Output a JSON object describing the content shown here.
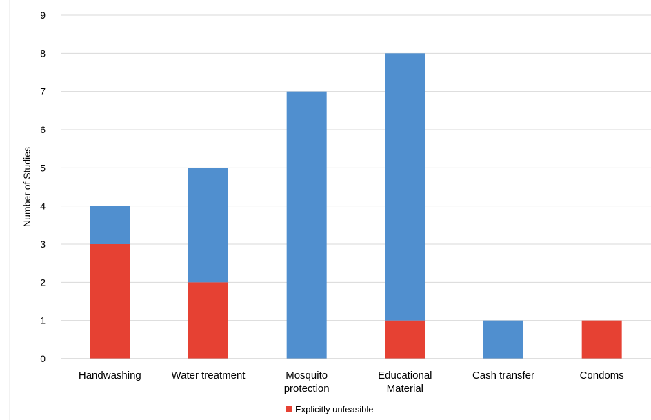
{
  "chart_data": {
    "type": "bar",
    "stacked": true,
    "categories": [
      [
        "Handwashing"
      ],
      [
        "Water treatment"
      ],
      [
        "Mosquito",
        "protection"
      ],
      [
        "Educational",
        "Material"
      ],
      [
        "Cash transfer"
      ],
      [
        "Condoms"
      ]
    ],
    "series": [
      {
        "name": "Explicitly unfeasible",
        "color": "#e64133",
        "values": [
          3,
          2,
          0,
          1,
          0,
          1
        ]
      },
      {
        "color": "#508fcf",
        "values": [
          1,
          3,
          7,
          7,
          1,
          0
        ]
      }
    ],
    "title": "",
    "xlabel": "",
    "ylabel": "Number of Studies",
    "ylim": [
      0,
      9
    ],
    "yticks": [
      0,
      1,
      2,
      3,
      4,
      5,
      6,
      7,
      8,
      9
    ],
    "grid": true,
    "legend_position": "bottom"
  }
}
